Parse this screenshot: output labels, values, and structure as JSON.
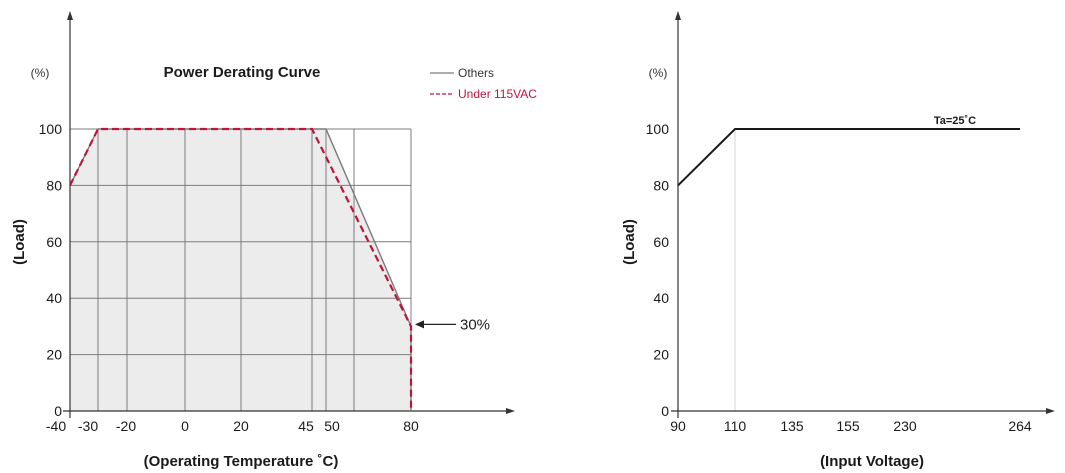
{
  "chart_data": [
    {
      "type": "line",
      "title": "Power Derating Curve",
      "xlabel": "(Operating Temperature ˚C)",
      "ylabel": "(Load)",
      "y_unit": "(%)",
      "x_ticks": [
        "-40",
        "-30",
        "-20",
        "0",
        "20",
        "45",
        "50",
        "80"
      ],
      "y_ticks": [
        "0",
        "20",
        "40",
        "60",
        "80",
        "100"
      ],
      "xlim": [
        -40,
        80
      ],
      "ylim": [
        0,
        100
      ],
      "grid": true,
      "shaded_region": true,
      "legend_position": "top-right",
      "series": [
        {
          "name": "Others",
          "color": "#7a7a7a",
          "style": "solid",
          "points": [
            [
              -40,
              80
            ],
            [
              -30,
              100
            ],
            [
              50,
              100
            ],
            [
              80,
              30
            ],
            [
              80,
              0
            ]
          ]
        },
        {
          "name": "Under 115VAC",
          "color": "#c0143c",
          "style": "dashed",
          "points": [
            [
              -40,
              80
            ],
            [
              -30,
              100
            ],
            [
              45,
              100
            ],
            [
              80,
              30
            ],
            [
              80,
              0
            ]
          ]
        }
      ],
      "annotation": {
        "text": "30%",
        "x": 80,
        "y": 30
      }
    },
    {
      "type": "line",
      "title": "",
      "xlabel": "(Input Voltage)",
      "ylabel": "(Load)",
      "y_unit": "(%)",
      "x_ticks": [
        "90",
        "110",
        "135",
        "155",
        "230",
        "264"
      ],
      "y_ticks": [
        "0",
        "20",
        "40",
        "60",
        "80",
        "100"
      ],
      "ylim": [
        0,
        100
      ],
      "grid": false,
      "series": [
        {
          "name": "Ta=25˚C",
          "color": "#1a1a1a",
          "style": "solid",
          "points": [
            [
              "90",
              80
            ],
            [
              "110",
              100
            ],
            [
              "264",
              100
            ]
          ]
        }
      ],
      "series_label": "Ta=25˚C"
    }
  ]
}
